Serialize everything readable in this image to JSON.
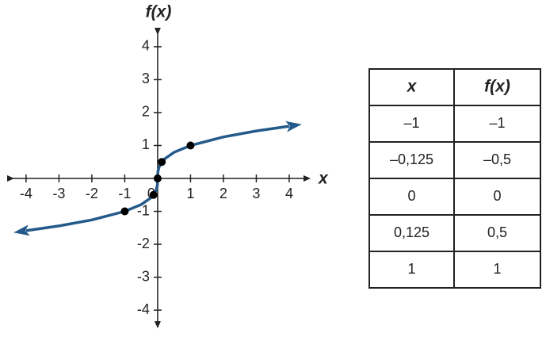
{
  "chart_data": {
    "type": "line",
    "xlabel": "x",
    "ylabel": "f(x)",
    "xlim": [
      -4.6,
      4.7
    ],
    "ylim": [
      -4.6,
      4.6
    ],
    "xticks": [
      -4,
      -3,
      -2,
      -1,
      0,
      1,
      2,
      3,
      4
    ],
    "yticks": [
      -4,
      -3,
      -2,
      -1,
      1,
      2,
      3,
      4
    ],
    "series": [
      {
        "color": "#245a8a",
        "x": [
          -4,
          -3,
          -2,
          -1,
          -0.5,
          -0.2,
          -0.05,
          -0.01,
          -0.001,
          0,
          0.001,
          0.01,
          0.05,
          0.2,
          0.5,
          1,
          2,
          3,
          4
        ],
        "values": [
          -1.587,
          -1.442,
          -1.26,
          -1,
          -0.794,
          -0.585,
          -0.368,
          -0.215,
          -0.1,
          0,
          0.1,
          0.215,
          0.368,
          0.585,
          0.794,
          1,
          1.26,
          1.442,
          1.587
        ]
      }
    ],
    "points": {
      "color": "#000000",
      "x": [
        -1,
        -0.125,
        0,
        0.125,
        1
      ],
      "values": [
        -1,
        -0.5,
        0,
        0.5,
        1
      ]
    }
  },
  "table": {
    "headers": [
      "x",
      "f(x)"
    ],
    "rows": [
      [
        "–1",
        "–1"
      ],
      [
        "–0,125",
        "–0,5"
      ],
      [
        "0",
        "0"
      ],
      [
        "0,125",
        "0,5"
      ],
      [
        "1",
        "1"
      ]
    ]
  }
}
